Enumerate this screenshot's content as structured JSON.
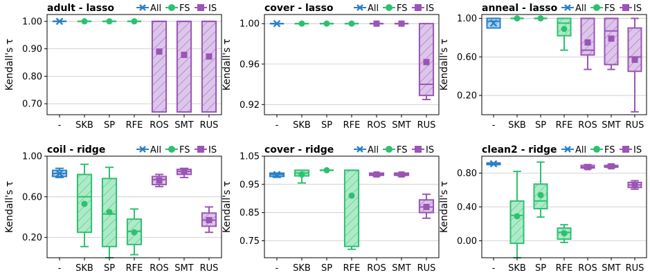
{
  "colors": {
    "All": "#2a80c6",
    "FS": "#2ec070",
    "IS": "#9a55b5"
  },
  "chart_data": [
    {
      "type": "box",
      "title": "adult - lasso",
      "ylabel": "Kendall's τ",
      "categories": [
        "-",
        "SKB",
        "SP",
        "RFE",
        "ROS",
        "SMT",
        "RUS"
      ],
      "groups": [
        "All",
        "FS",
        "FS",
        "FS",
        "IS",
        "IS",
        "IS"
      ],
      "legend": [
        "All",
        "FS",
        "IS"
      ],
      "ylim": [
        0.66,
        1.025
      ],
      "yticks": [
        0.7,
        0.8,
        0.9,
        1.0
      ],
      "yticklabels": [
        "0.70",
        "0.80",
        "0.90",
        "1.00"
      ],
      "boxes": [
        {
          "min": 1.0,
          "q1": 1.0,
          "median": 1.0,
          "q3": 1.0,
          "max": 1.0,
          "mean": 1.0
        },
        {
          "min": 1.0,
          "q1": 1.0,
          "median": 1.0,
          "q3": 1.0,
          "max": 1.0,
          "mean": 1.0
        },
        {
          "min": 1.0,
          "q1": 1.0,
          "median": 1.0,
          "q3": 1.0,
          "max": 1.0,
          "mean": 1.0
        },
        {
          "min": 1.0,
          "q1": 1.0,
          "median": 1.0,
          "q3": 1.0,
          "max": 1.0,
          "mean": 1.0
        },
        {
          "min": 0.67,
          "q1": 0.67,
          "median": 1.0,
          "q3": 1.0,
          "max": 1.0,
          "mean": 0.89
        },
        {
          "min": 0.67,
          "q1": 0.67,
          "median": 1.0,
          "q3": 1.0,
          "max": 1.0,
          "mean": 0.878
        },
        {
          "min": 0.67,
          "q1": 0.67,
          "median": 1.0,
          "q3": 1.0,
          "max": 1.0,
          "mean": 0.872
        }
      ]
    },
    {
      "type": "box",
      "title": "cover - lasso",
      "ylabel": "Kendall's τ",
      "categories": [
        "-",
        "SKB",
        "SP",
        "RFE",
        "ROS",
        "SMT",
        "RUS"
      ],
      "groups": [
        "All",
        "FS",
        "FS",
        "FS",
        "IS",
        "IS",
        "IS"
      ],
      "legend": [
        "All",
        "FS",
        "IS"
      ],
      "ylim": [
        0.91,
        1.009
      ],
      "yticks": [
        0.92,
        0.96,
        1.0
      ],
      "yticklabels": [
        "0.92",
        "0.96",
        "1.00"
      ],
      "boxes": [
        {
          "min": 1.0,
          "q1": 1.0,
          "median": 1.0,
          "q3": 1.0,
          "max": 1.0,
          "mean": 1.0
        },
        {
          "min": 1.0,
          "q1": 1.0,
          "median": 1.0,
          "q3": 1.0,
          "max": 1.0,
          "mean": 1.0
        },
        {
          "min": 1.0,
          "q1": 1.0,
          "median": 1.0,
          "q3": 1.0,
          "max": 1.0,
          "mean": 1.0
        },
        {
          "min": 1.0,
          "q1": 1.0,
          "median": 1.0,
          "q3": 1.0,
          "max": 1.0,
          "mean": 1.0
        },
        {
          "min": 1.0,
          "q1": 1.0,
          "median": 1.0,
          "q3": 1.0,
          "max": 1.0,
          "mean": 1.0
        },
        {
          "min": 1.0,
          "q1": 1.0,
          "median": 1.0,
          "q3": 1.0,
          "max": 1.0,
          "mean": 1.0
        },
        {
          "min": 0.925,
          "q1": 0.929,
          "median": 0.94,
          "q3": 1.0,
          "max": 1.0,
          "mean": 0.962
        }
      ]
    },
    {
      "type": "box",
      "title": "anneal - lasso",
      "ylabel": "Kendall's τ",
      "categories": [
        "-",
        "SKB",
        "SP",
        "RFE",
        "ROS",
        "SMT",
        "RUS"
      ],
      "groups": [
        "All",
        "FS",
        "FS",
        "FS",
        "IS",
        "IS",
        "IS"
      ],
      "legend": [
        "All",
        "FS",
        "IS"
      ],
      "ylim": [
        0.0,
        1.04
      ],
      "yticks": [
        0.2,
        0.6,
        1.0
      ],
      "yticklabels": [
        "0.20",
        "0.60",
        "1.00"
      ],
      "boxes": [
        {
          "min": 0.9,
          "q1": 0.9,
          "median": 0.97,
          "q3": 1.0,
          "max": 1.0,
          "mean": 0.95
        },
        {
          "min": 1.0,
          "q1": 1.0,
          "median": 1.0,
          "q3": 1.0,
          "max": 1.0,
          "mean": 1.0
        },
        {
          "min": 1.0,
          "q1": 1.0,
          "median": 1.0,
          "q3": 1.0,
          "max": 1.0,
          "mean": 1.0
        },
        {
          "min": 0.67,
          "q1": 0.82,
          "median": 0.95,
          "q3": 1.0,
          "max": 1.0,
          "mean": 0.89
        },
        {
          "min": 0.47,
          "q1": 0.62,
          "median": 0.67,
          "q3": 1.0,
          "max": 1.0,
          "mean": 0.75
        },
        {
          "min": 0.47,
          "q1": 0.52,
          "median": 0.87,
          "q3": 1.0,
          "max": 1.0,
          "mean": 0.79
        },
        {
          "min": 0.03,
          "q1": 0.45,
          "median": 0.6,
          "q3": 0.9,
          "max": 1.0,
          "mean": 0.57
        }
      ]
    },
    {
      "type": "box",
      "title": "coil - ridge",
      "ylabel": "Kendall's τ",
      "categories": [
        "-",
        "SKB",
        "SP",
        "RFE",
        "ROS",
        "SMT",
        "RUS"
      ],
      "groups": [
        "All",
        "FS",
        "FS",
        "FS",
        "IS",
        "IS",
        "IS"
      ],
      "legend": [
        "All",
        "FS",
        "IS"
      ],
      "ylim": [
        0.0,
        1.0
      ],
      "yticks": [
        0.2,
        0.6,
        1.0
      ],
      "yticklabels": [
        "0.20",
        "0.60",
        "1.00"
      ],
      "boxes": [
        {
          "min": 0.79,
          "q1": 0.8,
          "median": 0.83,
          "q3": 0.86,
          "max": 0.88,
          "mean": 0.83
        },
        {
          "min": 0.11,
          "q1": 0.25,
          "median": 0.6,
          "q3": 0.82,
          "max": 0.92,
          "mean": 0.53
        },
        {
          "min": 0.0,
          "q1": 0.11,
          "median": 0.43,
          "q3": 0.78,
          "max": 0.89,
          "mean": 0.45
        },
        {
          "min": 0.03,
          "q1": 0.13,
          "median": 0.26,
          "q3": 0.38,
          "max": 0.48,
          "mean": 0.25
        },
        {
          "min": 0.7,
          "q1": 0.72,
          "median": 0.77,
          "q3": 0.8,
          "max": 0.82,
          "mean": 0.76
        },
        {
          "min": 0.79,
          "q1": 0.82,
          "median": 0.85,
          "q3": 0.87,
          "max": 0.88,
          "mean": 0.85
        },
        {
          "min": 0.25,
          "q1": 0.31,
          "median": 0.37,
          "q3": 0.44,
          "max": 0.5,
          "mean": 0.37
        }
      ]
    },
    {
      "type": "box",
      "title": "cover - ridge",
      "ylabel": "Kendall's τ",
      "categories": [
        "-",
        "SKB",
        "SP",
        "RFE",
        "ROS",
        "SMT",
        "RUS"
      ],
      "groups": [
        "All",
        "FS",
        "FS",
        "FS",
        "IS",
        "IS",
        "IS"
      ],
      "legend": [
        "All",
        "FS",
        "IS"
      ],
      "ylim": [
        0.69,
        1.05
      ],
      "yticks": [
        0.75,
        0.85,
        0.95,
        1.05
      ],
      "yticklabels": [
        "0.75",
        "0.85",
        "0.95",
        "1.05"
      ],
      "boxes": [
        {
          "min": 0.975,
          "q1": 0.978,
          "median": 0.985,
          "q3": 0.99,
          "max": 0.99,
          "mean": 0.985
        },
        {
          "min": 0.955,
          "q1": 0.98,
          "median": 0.99,
          "q3": 1.0,
          "max": 1.0,
          "mean": 0.985
        },
        {
          "min": 1.0,
          "q1": 1.0,
          "median": 1.0,
          "q3": 1.0,
          "max": 1.0,
          "mean": 1.0
        },
        {
          "min": 0.72,
          "q1": 0.73,
          "median": 1.0,
          "q3": 1.0,
          "max": 1.0,
          "mean": 0.91
        },
        {
          "min": 0.98,
          "q1": 0.982,
          "median": 0.985,
          "q3": 0.99,
          "max": 0.99,
          "mean": 0.985
        },
        {
          "min": 0.98,
          "q1": 0.982,
          "median": 0.985,
          "q3": 0.99,
          "max": 0.99,
          "mean": 0.985
        },
        {
          "min": 0.83,
          "q1": 0.85,
          "median": 0.87,
          "q3": 0.895,
          "max": 0.915,
          "mean": 0.87
        }
      ]
    },
    {
      "type": "box",
      "title": "clean2 - ridge",
      "ylabel": "Kendall's τ",
      "categories": [
        "-",
        "SKB",
        "SP",
        "RFE",
        "ROS",
        "SMT",
        "RUS"
      ],
      "groups": [
        "All",
        "FS",
        "FS",
        "FS",
        "IS",
        "IS",
        "IS"
      ],
      "legend": [
        "All",
        "FS",
        "IS"
      ],
      "ylim": [
        -0.2,
        1.0
      ],
      "yticks": [
        0.0,
        0.4,
        0.8
      ],
      "yticklabels": [
        "0.00",
        "0.40",
        "0.80"
      ],
      "boxes": [
        {
          "min": 0.9,
          "q1": 0.9,
          "median": 0.91,
          "q3": 0.92,
          "max": 0.92,
          "mean": 0.91
        },
        {
          "min": -0.2,
          "q1": -0.03,
          "median": 0.3,
          "q3": 0.47,
          "max": 0.82,
          "mean": 0.29
        },
        {
          "min": 0.28,
          "q1": 0.38,
          "median": 0.47,
          "q3": 0.67,
          "max": 0.93,
          "mean": 0.54
        },
        {
          "min": -0.02,
          "q1": 0.02,
          "median": 0.1,
          "q3": 0.15,
          "max": 0.19,
          "mean": 0.09
        },
        {
          "min": 0.85,
          "q1": 0.86,
          "median": 0.87,
          "q3": 0.89,
          "max": 0.9,
          "mean": 0.87
        },
        {
          "min": 0.86,
          "q1": 0.87,
          "median": 0.88,
          "q3": 0.89,
          "max": 0.9,
          "mean": 0.88
        },
        {
          "min": 0.61,
          "q1": 0.63,
          "median": 0.66,
          "q3": 0.69,
          "max": 0.71,
          "mean": 0.66
        }
      ]
    }
  ]
}
